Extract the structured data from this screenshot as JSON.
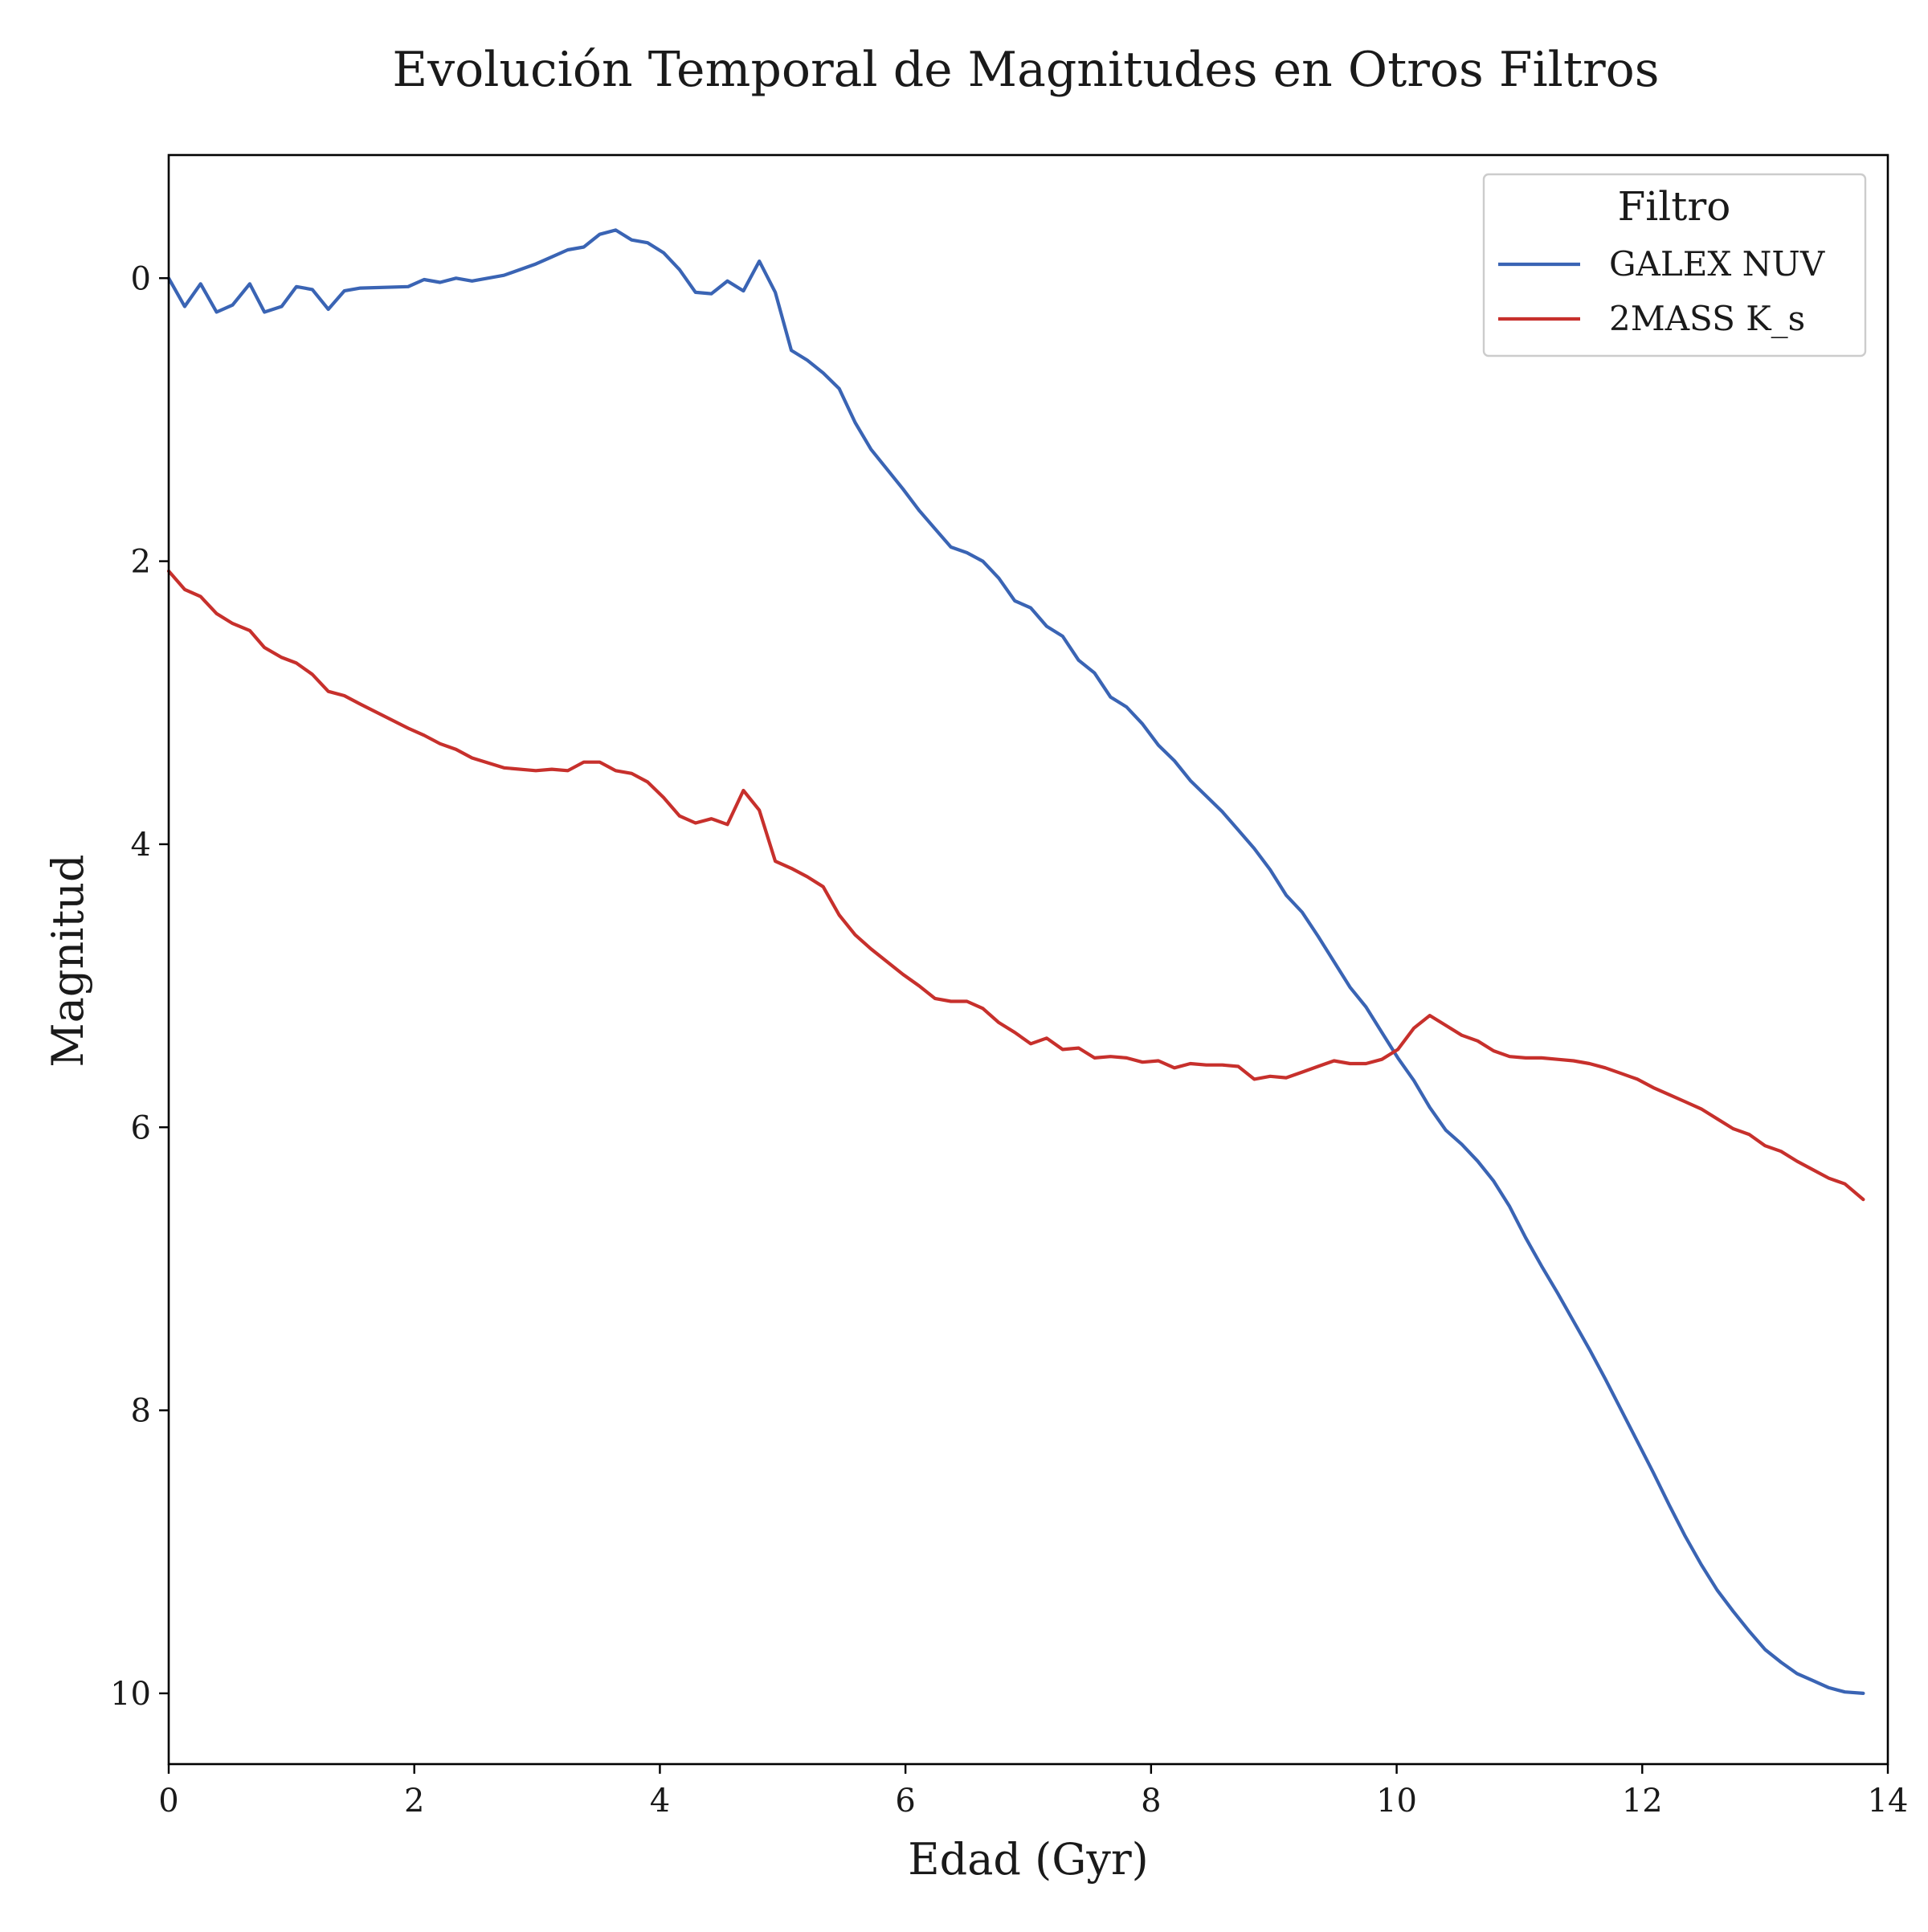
{
  "chart_data": {
    "type": "line",
    "title": "Evolución Temporal de Magnitudes en Otros Filtros",
    "xlabel": "Edad (Gyr)",
    "ylabel": "Magnitud",
    "xlim": [
      0,
      14
    ],
    "ylim": [
      10.5,
      -0.87
    ],
    "y_inverted": true,
    "grid": false,
    "xticks": [
      0,
      2,
      4,
      6,
      8,
      10,
      12,
      14
    ],
    "xtick_labels": [
      "0",
      "2",
      "4",
      "6",
      "8",
      "10",
      "12",
      "14"
    ],
    "yticks": [
      0,
      2,
      4,
      6,
      8,
      10
    ],
    "ytick_labels": [
      "0",
      "2",
      "4",
      "6",
      "8",
      "10"
    ],
    "legend": {
      "title": "Filtro",
      "placement": "top-right"
    },
    "series": [
      {
        "name": "GALEX NUV",
        "color": "#3a64b4",
        "x": [
          0.0,
          0.13,
          0.26,
          0.39,
          0.52,
          0.66,
          0.78,
          0.92,
          1.04,
          1.17,
          1.3,
          1.43,
          1.56,
          1.95,
          2.08,
          2.21,
          2.34,
          2.47,
          2.73,
          2.99,
          3.12,
          3.25,
          3.38,
          3.51,
          3.64,
          3.77,
          3.9,
          4.03,
          4.16,
          4.29,
          4.42,
          4.55,
          4.68,
          4.81,
          4.94,
          5.07,
          5.2,
          5.33,
          5.46,
          5.59,
          5.72,
          5.98,
          6.11,
          6.24,
          6.37,
          6.5,
          6.63,
          6.76,
          6.89,
          7.02,
          7.15,
          7.28,
          7.41,
          7.54,
          7.67,
          7.8,
          7.93,
          8.06,
          8.19,
          8.32,
          8.45,
          8.58,
          8.71,
          8.84,
          8.97,
          9.1,
          9.23,
          9.36,
          9.49,
          9.62,
          9.75,
          9.88,
          10.01,
          10.14,
          10.27,
          10.4,
          10.53,
          10.66,
          10.79,
          10.92,
          11.05,
          11.18,
          11.31,
          11.44,
          11.57,
          11.7,
          11.83,
          11.96,
          12.09,
          12.22,
          12.35,
          12.48,
          12.61,
          12.74,
          12.87,
          13.0,
          13.13,
          13.26,
          13.39,
          13.52,
          13.65,
          13.8
        ],
        "y": [
          0.0,
          0.2,
          0.04,
          0.24,
          0.19,
          0.04,
          0.24,
          0.2,
          0.06,
          0.08,
          0.22,
          0.09,
          0.07,
          0.06,
          0.01,
          0.03,
          0.0,
          0.02,
          -0.02,
          -0.1,
          -0.15,
          -0.2,
          -0.22,
          -0.31,
          -0.34,
          -0.27,
          -0.25,
          -0.18,
          -0.06,
          0.1,
          0.11,
          0.02,
          0.09,
          -0.12,
          0.1,
          0.51,
          0.58,
          0.67,
          0.78,
          1.02,
          1.21,
          1.49,
          1.64,
          1.77,
          1.9,
          1.94,
          2.0,
          2.12,
          2.28,
          2.33,
          2.46,
          2.53,
          2.7,
          2.79,
          2.96,
          3.03,
          3.15,
          3.3,
          3.41,
          3.55,
          3.66,
          3.77,
          3.9,
          4.03,
          4.18,
          4.36,
          4.48,
          4.65,
          4.83,
          5.01,
          5.15,
          5.33,
          5.51,
          5.67,
          5.86,
          6.02,
          6.12,
          6.24,
          6.38,
          6.56,
          6.78,
          6.98,
          7.17,
          7.37,
          7.57,
          7.78,
          8.0,
          8.22,
          8.44,
          8.67,
          8.89,
          9.09,
          9.27,
          9.42,
          9.56,
          9.69,
          9.78,
          9.86,
          9.91,
          9.96,
          9.99,
          10.0
        ]
      },
      {
        "name": "2MASS K_s",
        "color": "#c7302c",
        "x": [
          0.0,
          0.13,
          0.26,
          0.39,
          0.52,
          0.66,
          0.78,
          0.92,
          1.04,
          1.17,
          1.3,
          1.43,
          1.56,
          1.95,
          2.08,
          2.21,
          2.34,
          2.47,
          2.73,
          2.99,
          3.12,
          3.25,
          3.38,
          3.51,
          3.64,
          3.77,
          3.9,
          4.03,
          4.16,
          4.29,
          4.42,
          4.55,
          4.68,
          4.81,
          4.94,
          5.07,
          5.2,
          5.33,
          5.46,
          5.59,
          5.72,
          5.98,
          6.11,
          6.24,
          6.37,
          6.5,
          6.63,
          6.76,
          6.89,
          7.02,
          7.15,
          7.28,
          7.41,
          7.54,
          7.67,
          7.8,
          7.93,
          8.06,
          8.19,
          8.32,
          8.45,
          8.58,
          8.71,
          8.84,
          8.97,
          9.1,
          9.23,
          9.36,
          9.49,
          9.62,
          9.75,
          9.88,
          10.01,
          10.14,
          10.27,
          10.4,
          10.53,
          10.66,
          10.79,
          10.92,
          11.05,
          11.18,
          11.31,
          11.44,
          11.57,
          11.7,
          11.83,
          11.96,
          12.09,
          12.22,
          12.35,
          12.48,
          12.61,
          12.74,
          12.87,
          13.0,
          13.13,
          13.26,
          13.39,
          13.52,
          13.65,
          13.8
        ],
        "y": [
          2.07,
          2.2,
          2.25,
          2.37,
          2.44,
          2.49,
          2.61,
          2.68,
          2.72,
          2.8,
          2.92,
          2.95,
          3.01,
          3.18,
          3.23,
          3.29,
          3.33,
          3.39,
          3.46,
          3.48,
          3.47,
          3.48,
          3.42,
          3.42,
          3.48,
          3.5,
          3.56,
          3.67,
          3.8,
          3.85,
          3.82,
          3.86,
          3.62,
          3.76,
          4.12,
          4.17,
          4.23,
          4.3,
          4.5,
          4.64,
          4.74,
          4.92,
          5.0,
          5.09,
          5.11,
          5.11,
          5.16,
          5.26,
          5.33,
          5.41,
          5.37,
          5.45,
          5.44,
          5.51,
          5.5,
          5.51,
          5.54,
          5.53,
          5.58,
          5.55,
          5.56,
          5.56,
          5.57,
          5.66,
          5.64,
          5.65,
          5.61,
          5.57,
          5.53,
          5.55,
          5.55,
          5.52,
          5.45,
          5.3,
          5.21,
          5.28,
          5.35,
          5.39,
          5.46,
          5.5,
          5.51,
          5.51,
          5.52,
          5.53,
          5.55,
          5.58,
          5.62,
          5.66,
          5.72,
          5.77,
          5.82,
          5.87,
          5.94,
          6.01,
          6.05,
          6.13,
          6.17,
          6.24,
          6.3,
          6.36,
          6.4,
          6.51
        ]
      }
    ]
  }
}
